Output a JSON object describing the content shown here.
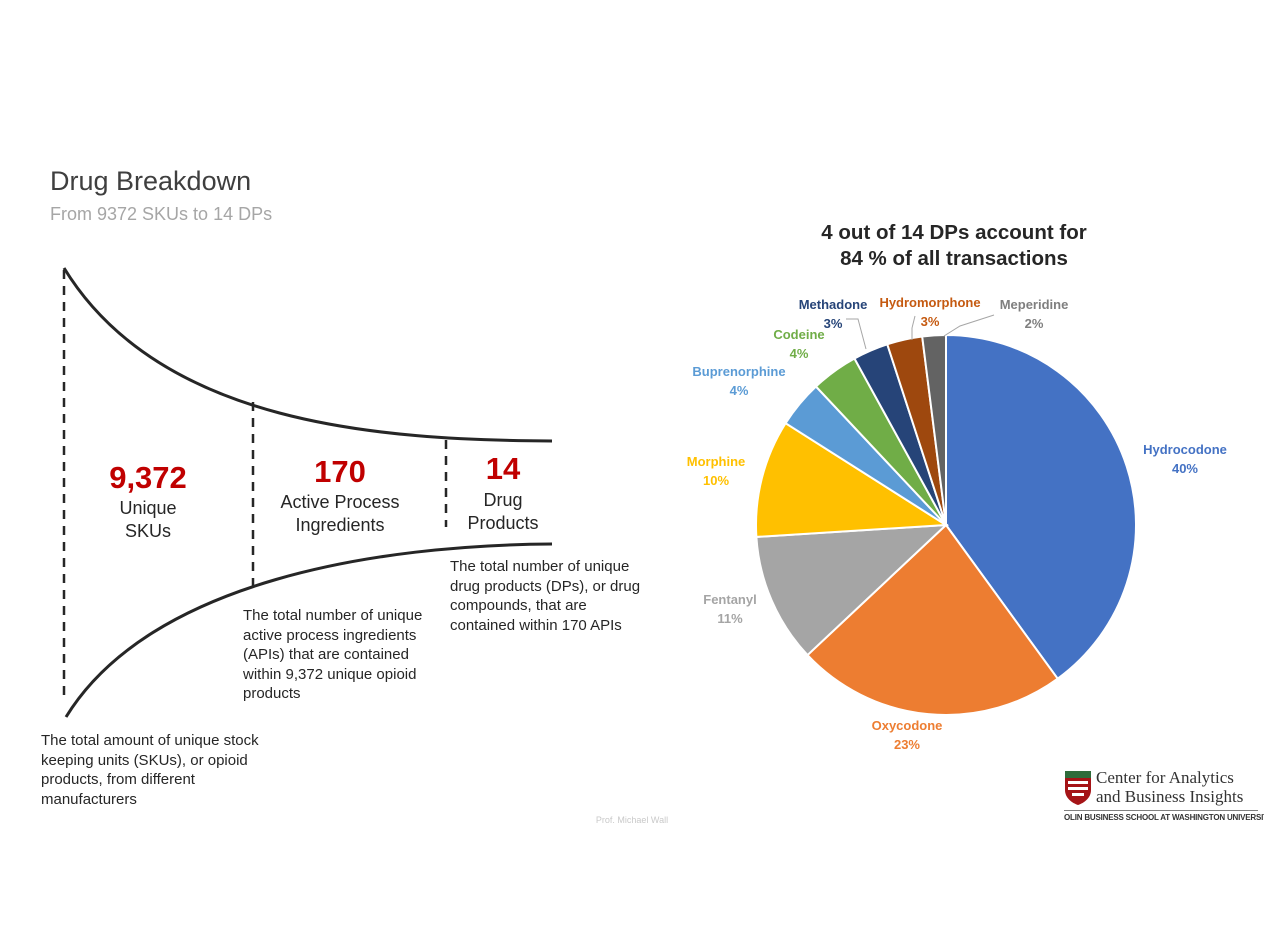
{
  "header": {
    "title": "Drug Breakdown",
    "subtitle": "From 9372 SKUs to 14 DPs"
  },
  "funnel": {
    "stages": [
      {
        "number": "9,372",
        "label": "Unique\nSKUs",
        "description": "The total amount of unique stock keeping units (SKUs), or opioid products, from different manufacturers"
      },
      {
        "number": "170",
        "label": "Active Process\nIngredients",
        "description": "The total number of unique active process ingredients (APIs) that are contained within 9,372 unique opioid products"
      },
      {
        "number": "14",
        "label": "Drug\nProducts",
        "description": "The total number of unique drug products (DPs), or drug compounds, that are contained within 170 APIs"
      }
    ]
  },
  "chart_data": {
    "type": "pie",
    "title": "4 out of 14 DPs account for\n84 % of all transactions",
    "start_angle_deg": 0,
    "direction": "clockwise",
    "slices": [
      {
        "name": "Hydrocodone",
        "value": 40,
        "label": "40%",
        "color": "#4472c4",
        "label_color": "#4472c4"
      },
      {
        "name": "Oxycodone",
        "value": 23,
        "label": "23%",
        "color": "#ed7d31",
        "label_color": "#ed7d31"
      },
      {
        "name": "Fentanyl",
        "value": 11,
        "label": "11%",
        "color": "#a5a5a5",
        "label_color": "#a5a5a5"
      },
      {
        "name": "Morphine",
        "value": 10,
        "label": "10%",
        "color": "#ffc000",
        "label_color": "#ffc000"
      },
      {
        "name": "Buprenorphine",
        "value": 4,
        "label": "4%",
        "color": "#5b9bd5",
        "label_color": "#5b9bd5"
      },
      {
        "name": "Codeine",
        "value": 4,
        "label": "4%",
        "color": "#70ad47",
        "label_color": "#70ad47"
      },
      {
        "name": "Methadone",
        "value": 3,
        "label": "3%",
        "color": "#264478",
        "label_color": "#264478"
      },
      {
        "name": "Hydromorphone",
        "value": 3,
        "label": "3%",
        "color": "#9e480e",
        "label_color": "#c55a11"
      },
      {
        "name": "Meperidine",
        "value": 2,
        "label": "2%",
        "color": "#636363",
        "label_color": "#7f7f7f"
      }
    ]
  },
  "footer": {
    "credit": "Prof. Michael Wall"
  },
  "logo": {
    "name": "Center for Analytics\nand Business Insights",
    "school": "OLIN BUSINESS SCHOOL AT WASHINGTON UNIVERSITY",
    "icon": "university-shield-icon"
  }
}
